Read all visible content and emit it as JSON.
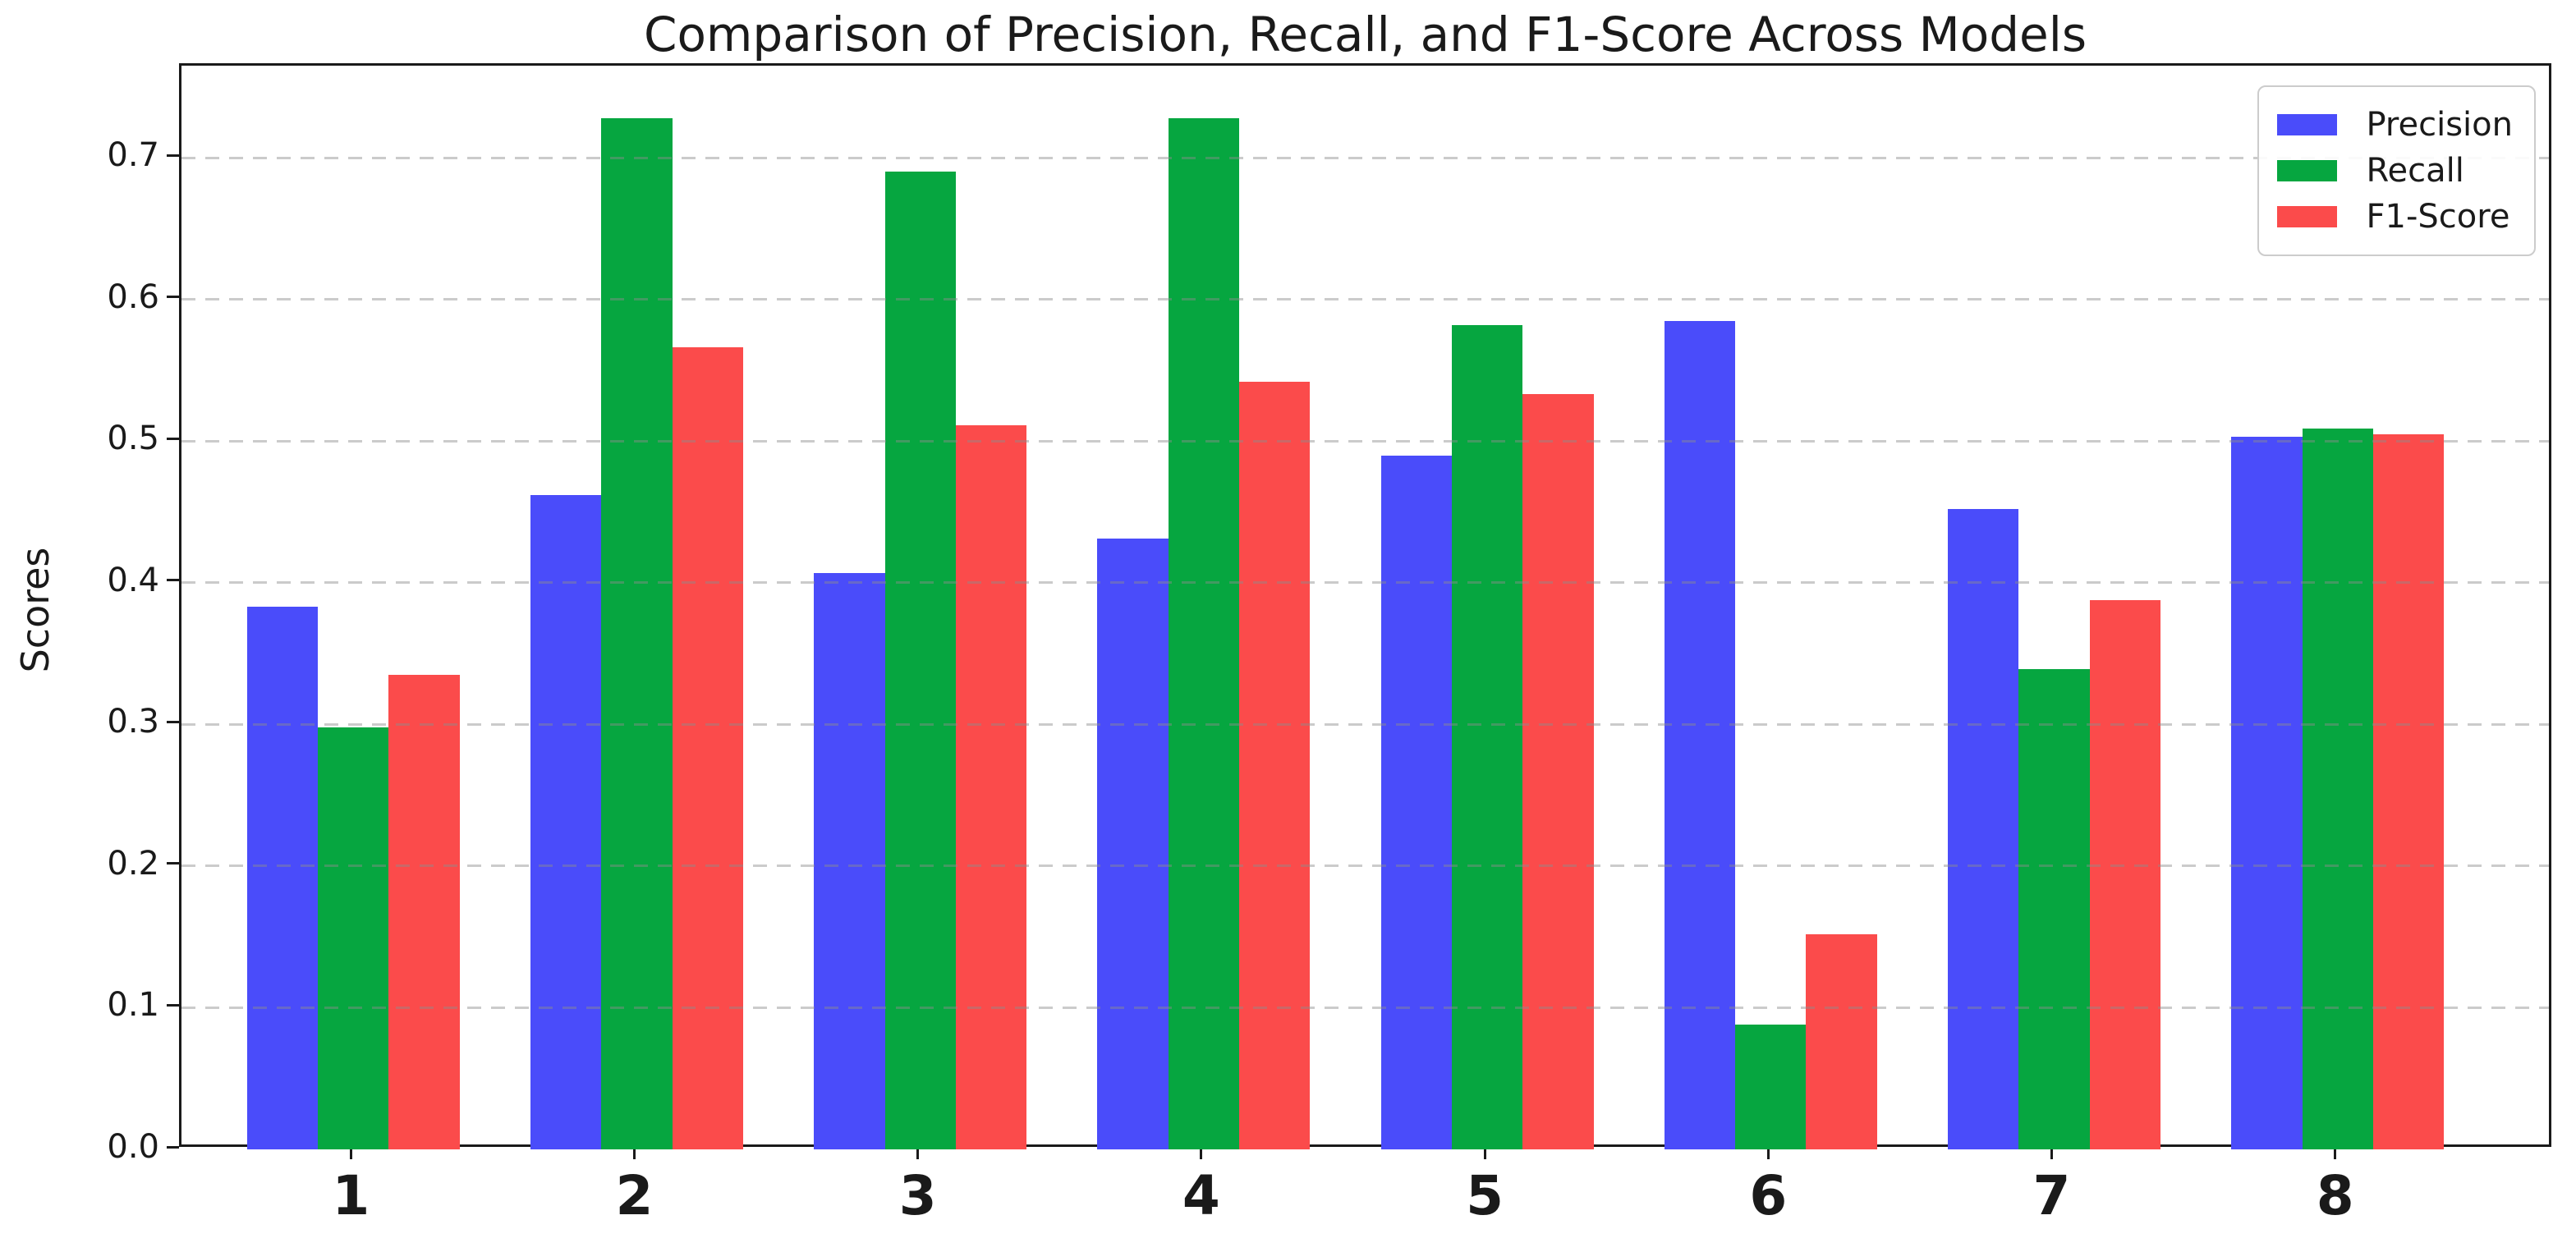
{
  "chart_data": {
    "type": "bar",
    "title": "Comparison of Precision, Recall, and F1-Score Across Models",
    "xlabel": "",
    "ylabel": "Scores",
    "categories": [
      "1",
      "2",
      "3",
      "4",
      "5",
      "6",
      "7",
      "8"
    ],
    "series": [
      {
        "name": "Precision",
        "color": "#4a4cfa",
        "values": [
          0.383,
          0.462,
          0.407,
          0.431,
          0.49,
          0.585,
          0.452,
          0.503
        ]
      },
      {
        "name": "Recall",
        "color": "#06a640",
        "values": [
          0.298,
          0.728,
          0.69,
          0.728,
          0.582,
          0.088,
          0.339,
          0.509
        ]
      },
      {
        "name": "F1-Score",
        "color": "#fb4b4b",
        "values": [
          0.335,
          0.566,
          0.511,
          0.542,
          0.533,
          0.152,
          0.388,
          0.505
        ]
      }
    ],
    "ylim": [
      0,
      0.765
    ],
    "yticks": [
      "0.0",
      "0.1",
      "0.2",
      "0.3",
      "0.4",
      "0.5",
      "0.6",
      "0.7"
    ],
    "grid": "horizontal-dashed",
    "legend_position": "upper right"
  }
}
